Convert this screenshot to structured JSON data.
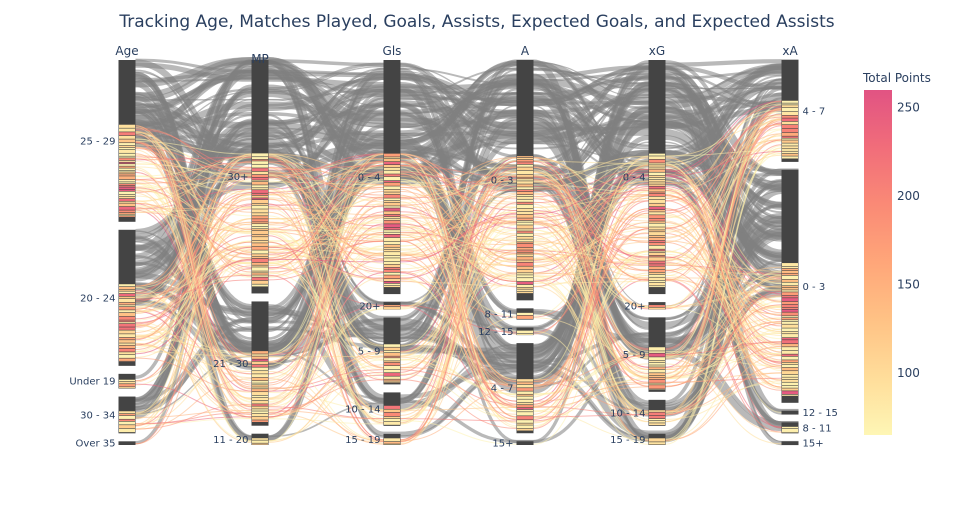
{
  "chart_data": {
    "type": "parallel_categories",
    "title": "Tracking Age, Matches Played, Goals, Assists, Expected Goals, and Expected Assists",
    "dimensions": [
      {
        "label": "Age",
        "categories": [
          {
            "label": "25 - 29",
            "share": 0.44
          },
          {
            "label": "20 - 24",
            "share": 0.37
          },
          {
            "label": "Under 19",
            "share": 0.04
          },
          {
            "label": "30 - 34",
            "share": 0.1
          },
          {
            "label": "Over 35",
            "share": 0.01
          }
        ]
      },
      {
        "label": "MP",
        "categories": [
          {
            "label": "30+",
            "share": 0.62
          },
          {
            "label": "21 - 30",
            "share": 0.33
          },
          {
            "label": "11 - 20",
            "share": 0.03
          }
        ]
      },
      {
        "label": "Gls",
        "categories": [
          {
            "label": "0 - 4",
            "share": 0.63
          },
          {
            "label": "20+",
            "share": 0.02
          },
          {
            "label": "5 - 9",
            "share": 0.18
          },
          {
            "label": "10 - 14",
            "share": 0.09
          },
          {
            "label": "15 - 19",
            "share": 0.03
          }
        ]
      },
      {
        "label": "A",
        "categories": [
          {
            "label": "0 - 3",
            "share": 0.64
          },
          {
            "label": "8 - 11",
            "share": 0.03
          },
          {
            "label": "12 - 15",
            "share": 0.02
          },
          {
            "label": "4 - 7",
            "share": 0.24
          },
          {
            "label": "15+",
            "share": 0.01
          }
        ]
      },
      {
        "label": "xG",
        "categories": [
          {
            "label": "0 - 4",
            "share": 0.63
          },
          {
            "label": "20+",
            "share": 0.02
          },
          {
            "label": "5 - 9",
            "share": 0.2
          },
          {
            "label": "10 - 14",
            "share": 0.07
          },
          {
            "label": "15 - 19",
            "share": 0.03
          }
        ]
      },
      {
        "label": "xA",
        "categories": [
          {
            "label": "4 - 7",
            "share": 0.28
          },
          {
            "label": "0 - 3",
            "share": 0.64
          },
          {
            "label": "12 - 15",
            "share": 0.01
          },
          {
            "label": "8 - 11",
            "share": 0.03
          },
          {
            "label": "15+",
            "share": 0.01
          }
        ]
      }
    ],
    "colorbar": {
      "title": "Total Points",
      "range": [
        65,
        260
      ],
      "ticks": [
        100,
        150,
        200,
        250
      ],
      "colorscale": [
        "#fef6b5",
        "#ffdd9a",
        "#ffc285",
        "#ffa679",
        "#fa8a76",
        "#f16d7a",
        "#e15383"
      ]
    },
    "base_color": "#7f7f7f"
  }
}
